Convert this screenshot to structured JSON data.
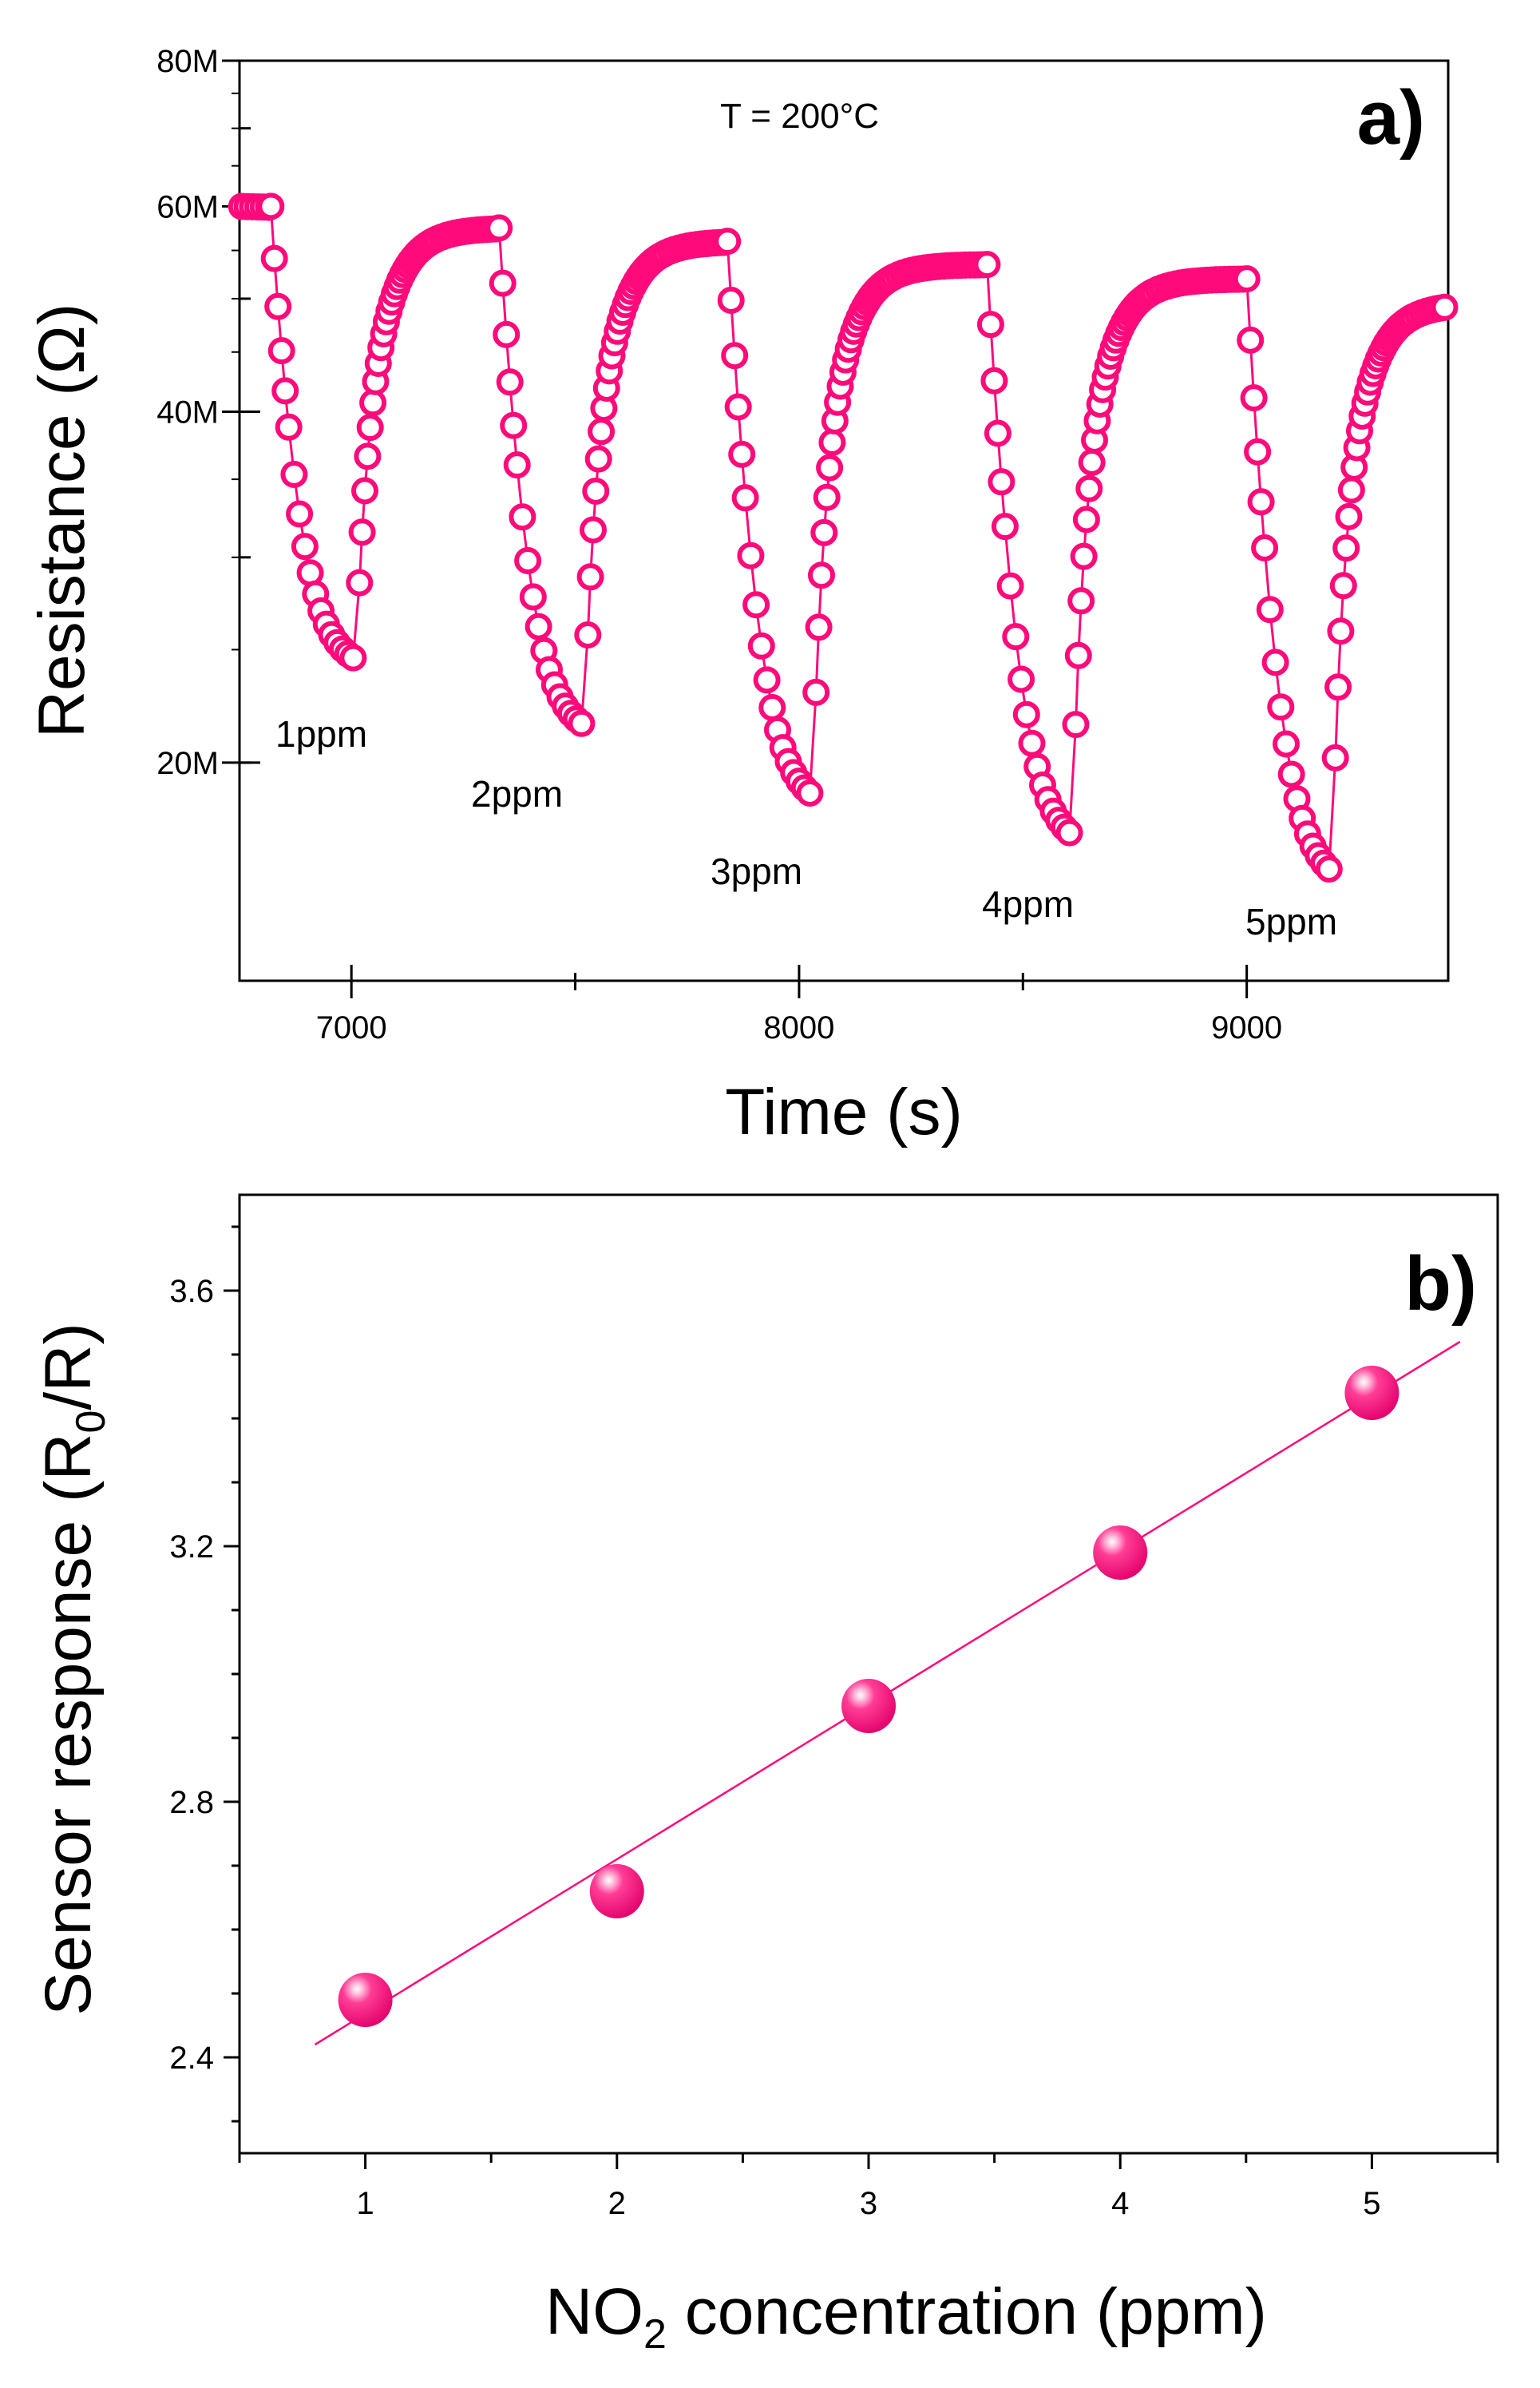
{
  "chart_data": [
    {
      "panel": "a)",
      "type": "scatter",
      "series_style": "open circles joined by line",
      "annotation_temperature": "T = 200°C",
      "xlabel": "Time (s)",
      "ylabel": "Resistance (Ω)",
      "yscale": "log",
      "xlim": [
        6750,
        9450
      ],
      "ylim": [
        13000000,
        80000000
      ],
      "xticks": [
        7000,
        8000,
        9000
      ],
      "xtick_labels": [
        "7000",
        "8000",
        "9000"
      ],
      "yticks": [
        20000000,
        40000000,
        60000000,
        80000000
      ],
      "ytick_labels": [
        "20M",
        "40M",
        "60M",
        "80M"
      ],
      "color": "#ff0a7a",
      "cycles": [
        {
          "label": "1ppm",
          "on": 6820,
          "off": 7010,
          "r_base": 60000000,
          "r_min": 24000000,
          "r_recover": 57500000
        },
        {
          "label": "2ppm",
          "on": 7330,
          "off": 7520,
          "r_base": 57500000,
          "r_min": 21000000,
          "r_recover": 56000000
        },
        {
          "label": "3ppm",
          "on": 7840,
          "off": 8030,
          "r_base": 56000000,
          "r_min": 18200000,
          "r_recover": 53500000
        },
        {
          "label": "4ppm",
          "on": 8420,
          "off": 8610,
          "r_base": 53500000,
          "r_min": 16800000,
          "r_recover": 52000000
        },
        {
          "label": "5ppm",
          "on": 9000,
          "off": 9190,
          "r_base": 52000000,
          "r_min": 15600000,
          "r_recover": 49500000
        }
      ]
    },
    {
      "panel": "b)",
      "type": "scatter",
      "fit_line": "linear",
      "xlabel": "NO2 concentration (ppm)",
      "ylabel": "Sensor response (R0/R)",
      "xlim": [
        0.5,
        5.5
      ],
      "ylim": [
        2.25,
        3.75
      ],
      "xticks": [
        1,
        2,
        3,
        4,
        5
      ],
      "xtick_labels": [
        "1",
        "2",
        "3",
        "4",
        "5"
      ],
      "yticks": [
        2.4,
        2.8,
        3.2,
        3.6
      ],
      "ytick_labels": [
        "2.4",
        "2.8",
        "3.2",
        "3.6"
      ],
      "x": [
        1,
        2,
        3,
        4,
        5
      ],
      "y": [
        2.49,
        2.66,
        2.95,
        3.19,
        3.44
      ],
      "fit_x": [
        0.8,
        5.35
      ],
      "fit_y": [
        2.42,
        3.52
      ],
      "color": "#ff0a7a"
    }
  ]
}
